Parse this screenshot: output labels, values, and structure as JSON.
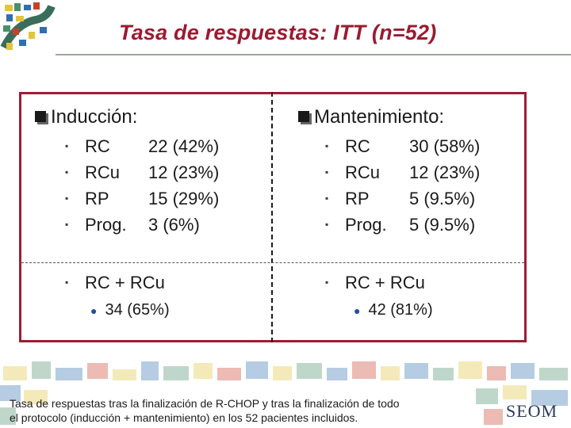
{
  "title": "Tasa de respuestas: ITT (n=52)",
  "induccion": {
    "heading": "Inducción:",
    "items": [
      {
        "label": "RC",
        "value": "22 (42%)"
      },
      {
        "label": "RCu",
        "value": "12 (23%)"
      },
      {
        "label": "RP",
        "value": "15 (29%)"
      },
      {
        "label": "Prog.",
        "value": "3 (6%)"
      }
    ],
    "combined_label": "RC + RCu",
    "combined_value": "34 (65%)"
  },
  "mantenimiento": {
    "heading": "Mantenimiento:",
    "items": [
      {
        "label": "RC",
        "value": "30 (58%)"
      },
      {
        "label": "RCu",
        "value": "12 (23%)"
      },
      {
        "label": "RP",
        "value": "5 (9.5%)"
      },
      {
        "label": "Prog.",
        "value": "5 (9.5%)"
      }
    ],
    "combined_label": "RC + RCu",
    "combined_value": "42 (81%)"
  },
  "caption_line1": "Tasa de respuestas tras la finalización de R-CHOP y tras la finalización de todo",
  "caption_line2": "el protocolo (inducción + mantenimiento) en los 52 pacientes incluidos.",
  "logo_text": "SEOM",
  "colors": {
    "title": "#9b1b30",
    "frame": "#a01b35",
    "sub_bullet": "#1e4e9c"
  }
}
